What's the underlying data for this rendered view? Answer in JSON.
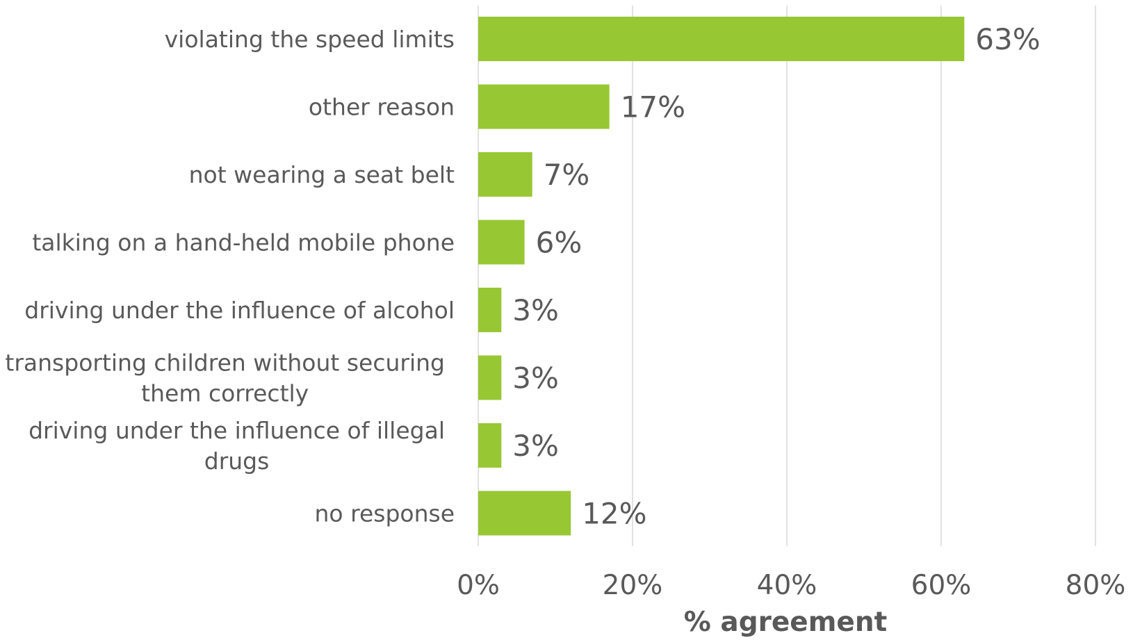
{
  "chart_data": {
    "type": "bar",
    "orientation": "horizontal",
    "categories": [
      [
        "violating the speed limits"
      ],
      [
        "other reason"
      ],
      [
        "not wearing a seat belt"
      ],
      [
        "talking on a hand-held mobile phone"
      ],
      [
        "driving under the influence of alcohol"
      ],
      [
        "transporting children without securing",
        "them correctly"
      ],
      [
        "driving under the influence of illegal",
        "drugs"
      ],
      [
        "no response"
      ]
    ],
    "values": [
      63,
      17,
      7,
      6,
      3,
      3,
      3,
      12
    ],
    "value_labels": [
      "63%",
      "17%",
      "7%",
      "6%",
      "3%",
      "3%",
      "3%",
      "12%"
    ],
    "xlabel": "% agreement",
    "ylabel": "",
    "title": "",
    "xlim": [
      0,
      80
    ],
    "xticks": [
      0,
      20,
      40,
      60,
      80
    ],
    "xtick_labels": [
      "0%",
      "20%",
      "40%",
      "60%",
      "80%"
    ],
    "grid": "vertical",
    "legend": "none",
    "bar_color": "#97c733",
    "text_color": "#595959",
    "grid_color": "#d9d9d9"
  }
}
